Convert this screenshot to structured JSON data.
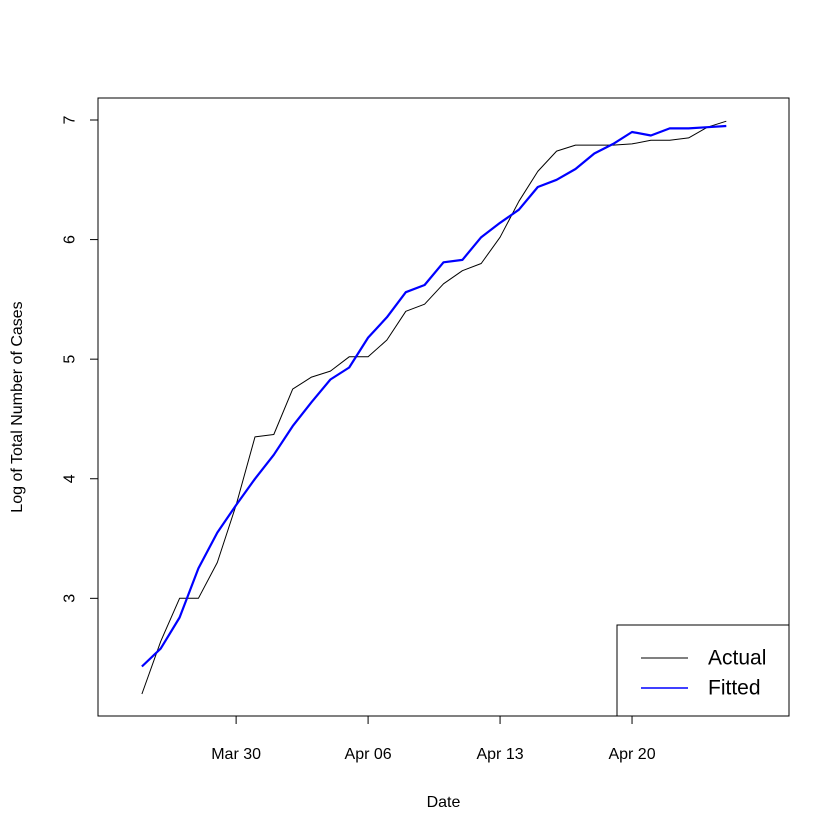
{
  "chart_data": {
    "type": "line",
    "title": "",
    "xlabel": "Date",
    "ylabel": "Log of Total Number of Cases",
    "xlim": [
      "2020-03-24",
      "2020-04-27"
    ],
    "ylim": [
      2.2,
      7.0
    ],
    "x_ticks": [
      "2020-03-30",
      "2020-04-06",
      "2020-04-13",
      "2020-04-20"
    ],
    "x_tick_labels": [
      "Mar 30",
      "Apr 06",
      "Apr 13",
      "Apr 20"
    ],
    "y_ticks": [
      3,
      4,
      5,
      6,
      7
    ],
    "y_tick_labels": [
      "3",
      "4",
      "5",
      "6",
      "7"
    ],
    "grid": false,
    "legend_position": "bottom-right",
    "series": [
      {
        "name": "Actual",
        "color": "#000000",
        "x": [
          "2020-03-25",
          "2020-03-26",
          "2020-03-27",
          "2020-03-28",
          "2020-03-29",
          "2020-03-30",
          "2020-03-31",
          "2020-04-01",
          "2020-04-02",
          "2020-04-03",
          "2020-04-04",
          "2020-04-05",
          "2020-04-06",
          "2020-04-07",
          "2020-04-08",
          "2020-04-09",
          "2020-04-10",
          "2020-04-11",
          "2020-04-12",
          "2020-04-13",
          "2020-04-14",
          "2020-04-15",
          "2020-04-16",
          "2020-04-17",
          "2020-04-18",
          "2020-04-19",
          "2020-04-20",
          "2020-04-21",
          "2020-04-22",
          "2020-04-23",
          "2020-04-24",
          "2020-04-25"
        ],
        "y": [
          2.2,
          2.64,
          3.0,
          3.0,
          3.3,
          3.78,
          4.35,
          4.37,
          4.75,
          4.85,
          4.9,
          5.02,
          5.02,
          5.16,
          5.4,
          5.46,
          5.63,
          5.74,
          5.8,
          6.02,
          6.32,
          6.57,
          6.74,
          6.79,
          6.79,
          6.79,
          6.8,
          6.83,
          6.83,
          6.85,
          6.94,
          6.99
        ]
      },
      {
        "name": "Fitted",
        "color": "#0000ff",
        "x": [
          "2020-03-25",
          "2020-03-26",
          "2020-03-27",
          "2020-03-28",
          "2020-03-29",
          "2020-03-30",
          "2020-03-31",
          "2020-04-01",
          "2020-04-02",
          "2020-04-03",
          "2020-04-04",
          "2020-04-05",
          "2020-04-06",
          "2020-04-07",
          "2020-04-08",
          "2020-04-09",
          "2020-04-10",
          "2020-04-11",
          "2020-04-12",
          "2020-04-13",
          "2020-04-14",
          "2020-04-15",
          "2020-04-16",
          "2020-04-17",
          "2020-04-18",
          "2020-04-19",
          "2020-04-20",
          "2020-04-21",
          "2020-04-22",
          "2020-04-23",
          "2020-04-24",
          "2020-04-25"
        ],
        "y": [
          2.43,
          2.58,
          2.84,
          3.25,
          3.55,
          3.78,
          4.0,
          4.2,
          4.44,
          4.64,
          4.83,
          4.93,
          5.18,
          5.35,
          5.56,
          5.62,
          5.81,
          5.83,
          6.02,
          6.14,
          6.25,
          6.44,
          6.5,
          6.59,
          6.72,
          6.8,
          6.9,
          6.87,
          6.93,
          6.93,
          6.94,
          6.95
        ]
      }
    ]
  }
}
